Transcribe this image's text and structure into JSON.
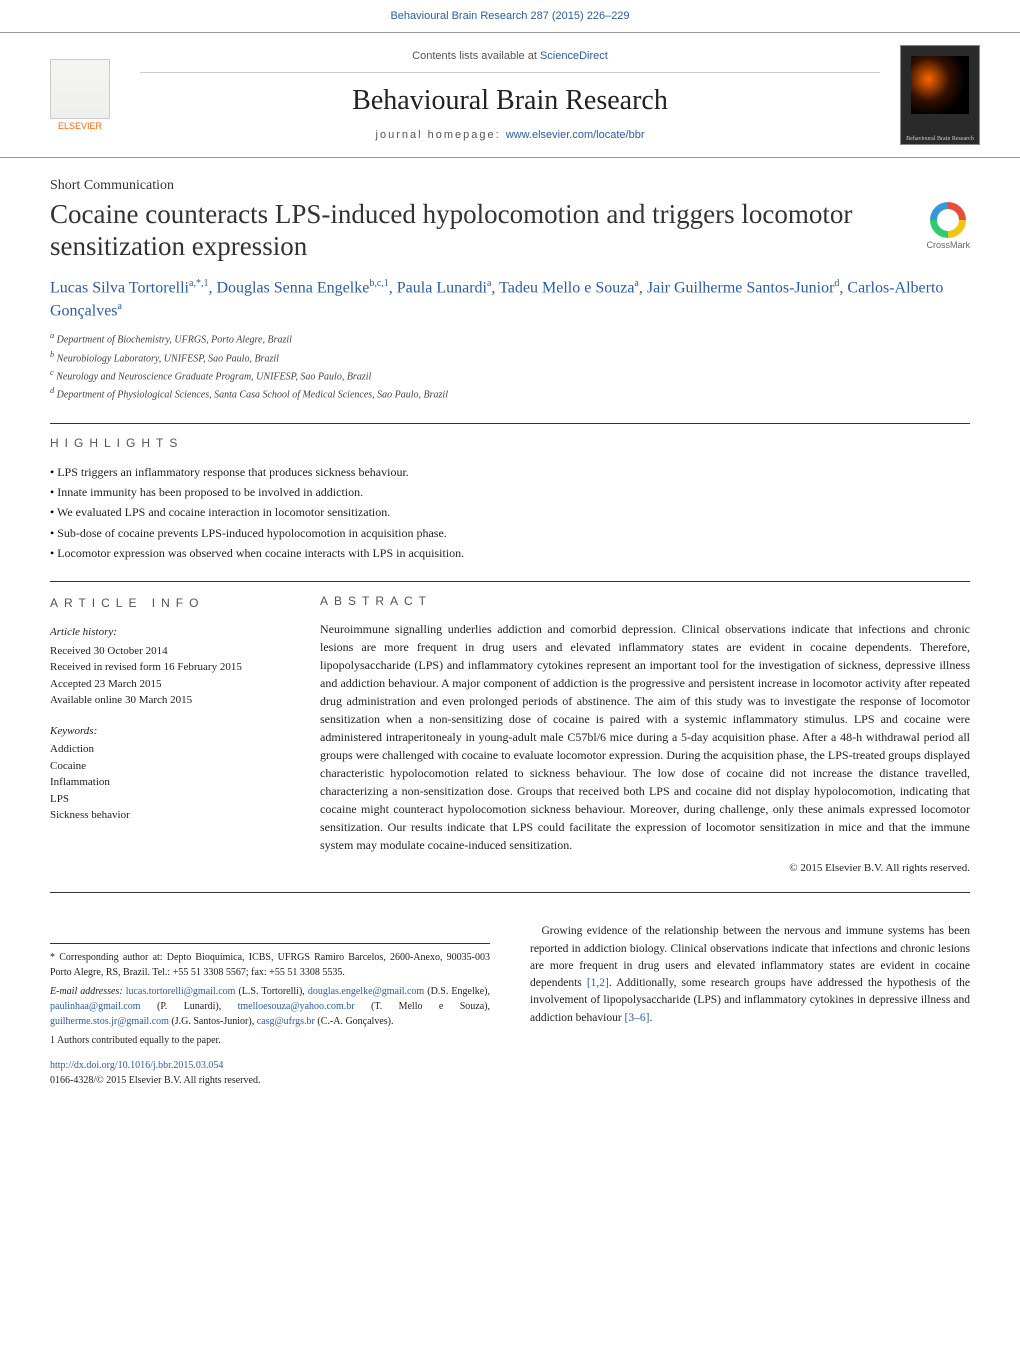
{
  "header": {
    "citation": "Behavioural Brain Research 287 (2015) 226–229",
    "contents_prefix": "Contents lists available at ",
    "contents_link": "ScienceDirect",
    "journal_title": "Behavioural Brain Research",
    "homepage_prefix": "journal homepage: ",
    "homepage_url": "www.elsevier.com/locate/bbr",
    "publisher": "ELSEVIER",
    "cover_label": "Behavioural Brain Research"
  },
  "article": {
    "type": "Short Communication",
    "title": "Cocaine counteracts LPS-induced hypolocomotion and triggers locomotor sensitization expression",
    "crossmark": "CrossMark",
    "authors_html": "Lucas Silva Tortorelli",
    "authors": [
      {
        "name": "Lucas Silva Tortorelli",
        "sup": "a,*,1"
      },
      {
        "name": "Douglas Senna Engelke",
        "sup": "b,c,1"
      },
      {
        "name": "Paula Lunardi",
        "sup": "a"
      },
      {
        "name": "Tadeu Mello e Souza",
        "sup": "a"
      },
      {
        "name": "Jair Guilherme Santos-Junior",
        "sup": "d"
      },
      {
        "name": "Carlos-Alberto Gonçalves",
        "sup": "a"
      }
    ],
    "affiliations": [
      "a Department of Biochemistry, UFRGS, Porto Alegre, Brazil",
      "b Neurobiology Laboratory, UNIFESP, Sao Paulo, Brazil",
      "c Neurology and Neuroscience Graduate Program, UNIFESP, Sao Paulo, Brazil",
      "d Department of Physiological Sciences, Santa Casa School of Medical Sciences, Sao Paulo, Brazil"
    ]
  },
  "highlights": {
    "heading": "HIGHLIGHTS",
    "items": [
      "LPS triggers an inflammatory response that produces sickness behaviour.",
      "Innate immunity has been proposed to be involved in addiction.",
      "We evaluated LPS and cocaine interaction in locomotor sensitization.",
      "Sub-dose of cocaine prevents LPS-induced hypolocomotion in acquisition phase.",
      "Locomotor expression was observed when cocaine interacts with LPS in acquisition."
    ]
  },
  "article_info": {
    "heading": "ARTICLE INFO",
    "history_label": "Article history:",
    "history": [
      "Received 30 October 2014",
      "Received in revised form 16 February 2015",
      "Accepted 23 March 2015",
      "Available online 30 March 2015"
    ],
    "keywords_label": "Keywords:",
    "keywords": [
      "Addiction",
      "Cocaine",
      "Inflammation",
      "LPS",
      "Sickness behavior"
    ]
  },
  "abstract": {
    "heading": "ABSTRACT",
    "text": "Neuroimmune signalling underlies addiction and comorbid depression. Clinical observations indicate that infections and chronic lesions are more frequent in drug users and elevated inflammatory states are evident in cocaine dependents. Therefore, lipopolysaccharide (LPS) and inflammatory cytokines represent an important tool for the investigation of sickness, depressive illness and addiction behaviour. A major component of addiction is the progressive and persistent increase in locomotor activity after repeated drug administration and even prolonged periods of abstinence. The aim of this study was to investigate the response of locomotor sensitization when a non-sensitizing dose of cocaine is paired with a systemic inflammatory stimulus. LPS and cocaine were administered intraperitonealy in young-adult male C57bl/6 mice during a 5-day acquisition phase. After a 48-h withdrawal period all groups were challenged with cocaine to evaluate locomotor expression. During the acquisition phase, the LPS-treated groups displayed characteristic hypolocomotion related to sickness behaviour. The low dose of cocaine did not increase the distance travelled, characterizing a non-sensitization dose. Groups that received both LPS and cocaine did not display hypolocomotion, indicating that cocaine might counteract hypolocomotion sickness behaviour. Moreover, during challenge, only these animals expressed locomotor sensitization. Our results indicate that LPS could facilitate the expression of locomotor sensitization in mice and that the immune system may modulate cocaine-induced sensitization.",
    "copyright": "© 2015 Elsevier B.V. All rights reserved."
  },
  "body": {
    "para1": "Growing evidence of the relationship between the nervous and immune systems has been reported in addiction biology. Clinical observations indicate that infections and chronic lesions are more frequent in drug users and elevated inflammatory states are evident in cocaine dependents ",
    "ref1": "[1,2]",
    "para1b": ". Additionally, some research groups have addressed the hypothesis of the involvement of lipopolysaccharide (LPS) and inflammatory cytokines in depressive illness and addiction behaviour ",
    "ref2": "[3–6]",
    "para1c": "."
  },
  "footnotes": {
    "corr": "* Corresponding author at: Depto Bioquímica, ICBS, UFRGS Ramiro Barcelos, 2600-Anexo, 90035-003 Porto Alegre, RS, Brazil. Tel.: +55 51 3308 5567; fax: +55 51 3308 5535.",
    "emails_label": "E-mail addresses: ",
    "emails": [
      {
        "addr": "lucas.tortorelli@gmail.com",
        "who": "(L.S. Tortorelli)"
      },
      {
        "addr": "douglas.engelke@gmail.com",
        "who": "(D.S. Engelke)"
      },
      {
        "addr": "paulinhaa@gmail.com",
        "who": "(P. Lunardi)"
      },
      {
        "addr": "tmelloesouza@yahoo.com.br",
        "who": "(T. Mello e Souza)"
      },
      {
        "addr": "guilherme.stos.jr@gmail.com",
        "who": "(J.G. Santos-Junior)"
      },
      {
        "addr": "casg@ufrgs.br",
        "who": "(C.-A. Gonçalves)"
      }
    ],
    "equal": "1 Authors contributed equally to the paper.",
    "doi": "http://dx.doi.org/10.1016/j.bbr.2015.03.054",
    "issn_copy": "0166-4328/© 2015 Elsevier B.V. All rights reserved."
  },
  "colors": {
    "link": "#2a5caa",
    "elsevier_orange": "#ff6600",
    "text": "#222222",
    "rule": "#333333"
  }
}
